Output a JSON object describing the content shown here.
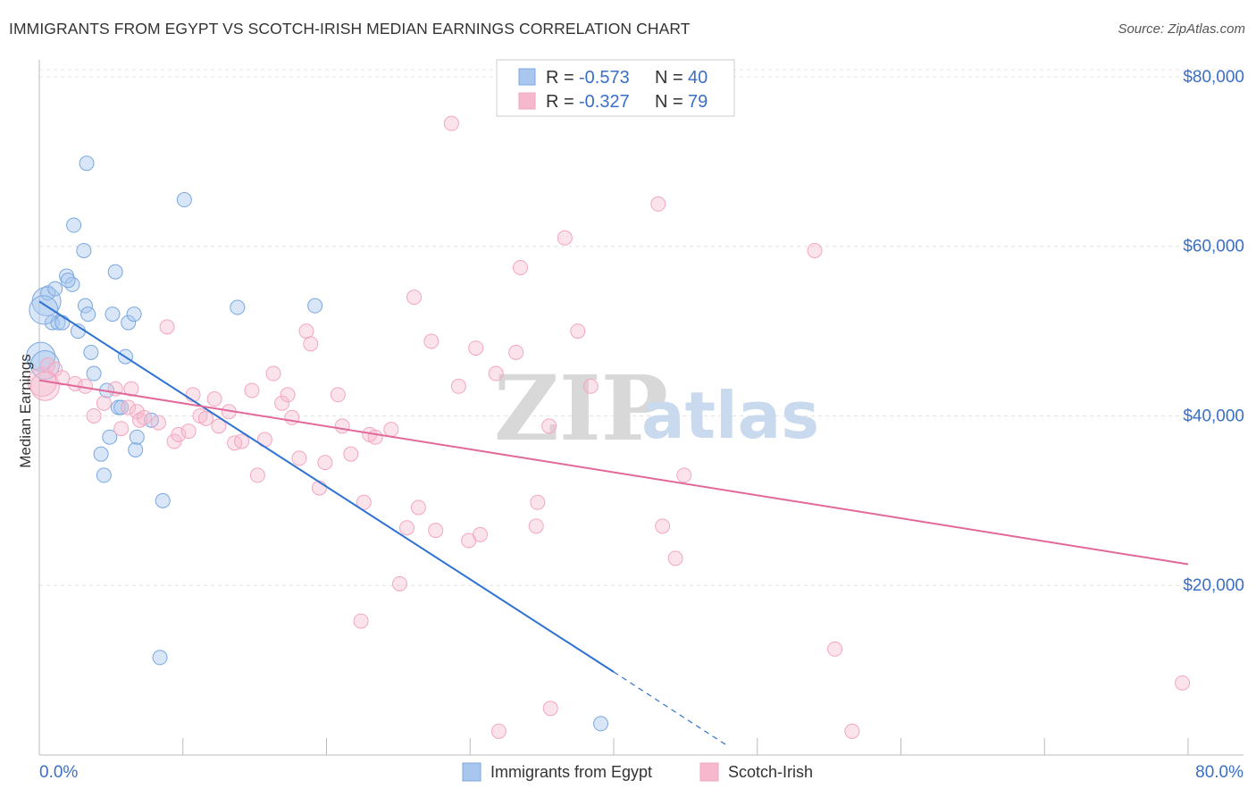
{
  "title": "IMMIGRANTS FROM EGYPT VS SCOTCH-IRISH MEDIAN EARNINGS CORRELATION CHART",
  "source": "Source: ZipAtlas.com",
  "watermark": {
    "zip": "ZIP",
    "atlas": "atlas"
  },
  "legend": {
    "rows": [
      {
        "r_label": "R =",
        "r_value": "-0.573",
        "n_label": "N =",
        "n_value": "40",
        "color": "#a9c7ee"
      },
      {
        "r_label": "R =",
        "r_value": "-0.327",
        "n_label": "N =",
        "n_value": "79",
        "color": "#f6b8cc"
      }
    ]
  },
  "chart_data": {
    "type": "scatter",
    "title": "IMMIGRANTS FROM EGYPT VS SCOTCH-IRISH MEDIAN EARNINGS CORRELATION CHART",
    "xlabel": "",
    "ylabel": "Median Earnings",
    "xlim": [
      0,
      80
    ],
    "ylim": [
      0,
      82000
    ],
    "x_tick_labels": [
      "0.0%",
      "80.0%"
    ],
    "y_ticks": [
      20000,
      40000,
      60000,
      80000
    ],
    "y_tick_labels": [
      "$20,000",
      "$40,000",
      "$60,000",
      "$80,000"
    ],
    "grid": true,
    "series": [
      {
        "name": "Immigrants from Egypt",
        "color": "#7aa7e0",
        "line_color": "#2d72d2",
        "points": [
          [
            0.1,
            47000
          ],
          [
            0.5,
            53500
          ],
          [
            0.6,
            54500
          ],
          [
            0.9,
            51000
          ],
          [
            1.1,
            55000
          ],
          [
            1.3,
            51000
          ],
          [
            1.9,
            56500
          ],
          [
            2.3,
            55500
          ],
          [
            2.4,
            62500
          ],
          [
            2.7,
            50000
          ],
          [
            3.1,
            59500
          ],
          [
            3.2,
            53000
          ],
          [
            3.3,
            69800
          ],
          [
            3.4,
            52000
          ],
          [
            3.6,
            47500
          ],
          [
            3.8,
            45000
          ],
          [
            4.3,
            35500
          ],
          [
            4.5,
            33000
          ],
          [
            4.7,
            43000
          ],
          [
            4.9,
            37500
          ],
          [
            5.1,
            52000
          ],
          [
            5.3,
            57000
          ],
          [
            5.5,
            41000
          ],
          [
            6.0,
            47000
          ],
          [
            6.2,
            51000
          ],
          [
            6.6,
            52000
          ],
          [
            6.7,
            36000
          ],
          [
            6.8,
            37500
          ],
          [
            7.8,
            39500
          ],
          [
            8.4,
            11500
          ],
          [
            8.6,
            30000
          ],
          [
            10.1,
            65500
          ],
          [
            13.8,
            52800
          ],
          [
            19.2,
            53000
          ],
          [
            39.1,
            3700
          ],
          [
            0.3,
            52500
          ],
          [
            1.6,
            51000
          ],
          [
            2.0,
            56000
          ],
          [
            5.7,
            41000
          ],
          [
            0.4,
            46000
          ]
        ],
        "trend": {
          "x_start": 0,
          "y_start": 53500,
          "x_solid_end": 40,
          "y_solid_end": 9800,
          "x_dash_end": 48,
          "y_dash_end": 1000
        }
      },
      {
        "name": "Scotch-Irish",
        "color": "#f3a6c0",
        "line_color": "#e2689a",
        "points": [
          [
            0.2,
            44000
          ],
          [
            0.6,
            46000
          ],
          [
            1.1,
            45500
          ],
          [
            1.6,
            44500
          ],
          [
            2.5,
            43800
          ],
          [
            3.2,
            43500
          ],
          [
            3.8,
            40000
          ],
          [
            4.5,
            41500
          ],
          [
            5.3,
            43200
          ],
          [
            5.7,
            38500
          ],
          [
            6.2,
            41000
          ],
          [
            6.4,
            43200
          ],
          [
            6.8,
            40500
          ],
          [
            7.0,
            39500
          ],
          [
            7.3,
            39800
          ],
          [
            8.3,
            39200
          ],
          [
            8.9,
            50500
          ],
          [
            9.4,
            37000
          ],
          [
            9.7,
            37800
          ],
          [
            10.4,
            38200
          ],
          [
            10.7,
            42500
          ],
          [
            11.2,
            40000
          ],
          [
            11.6,
            39700
          ],
          [
            12.2,
            42000
          ],
          [
            12.5,
            38800
          ],
          [
            13.2,
            40500
          ],
          [
            13.6,
            36800
          ],
          [
            14.1,
            37000
          ],
          [
            14.8,
            43000
          ],
          [
            15.2,
            33000
          ],
          [
            15.7,
            37200
          ],
          [
            16.3,
            45000
          ],
          [
            16.9,
            41500
          ],
          [
            17.3,
            42500
          ],
          [
            17.6,
            39800
          ],
          [
            18.1,
            35000
          ],
          [
            18.6,
            50000
          ],
          [
            18.9,
            48500
          ],
          [
            19.5,
            31500
          ],
          [
            19.9,
            34500
          ],
          [
            20.8,
            42500
          ],
          [
            21.1,
            38800
          ],
          [
            21.7,
            35500
          ],
          [
            22.4,
            15800
          ],
          [
            22.6,
            29800
          ],
          [
            23.0,
            37800
          ],
          [
            23.4,
            37500
          ],
          [
            24.5,
            38400
          ],
          [
            25.1,
            20200
          ],
          [
            25.6,
            26800
          ],
          [
            26.4,
            29200
          ],
          [
            26.1,
            54000
          ],
          [
            27.3,
            48800
          ],
          [
            27.6,
            26500
          ],
          [
            28.7,
            74500
          ],
          [
            29.2,
            43500
          ],
          [
            29.9,
            25300
          ],
          [
            30.4,
            48000
          ],
          [
            30.7,
            26000
          ],
          [
            31.8,
            45000
          ],
          [
            33.2,
            47500
          ],
          [
            33.5,
            57500
          ],
          [
            34.6,
            27000
          ],
          [
            34.7,
            29800
          ],
          [
            35.6,
            5500
          ],
          [
            35.5,
            38800
          ],
          [
            36.6,
            61000
          ],
          [
            37.5,
            50000
          ],
          [
            38.4,
            43500
          ],
          [
            43.1,
            65000
          ],
          [
            43.4,
            27000
          ],
          [
            44.3,
            23200
          ],
          [
            44.9,
            33000
          ],
          [
            54.0,
            59500
          ],
          [
            55.4,
            12500
          ],
          [
            56.6,
            2800
          ],
          [
            79.6,
            8500
          ],
          [
            32.0,
            2800
          ],
          [
            0.4,
            43500
          ]
        ],
        "trend": {
          "x_start": 0,
          "y_start": 44200,
          "x_end": 80,
          "y_end": 22500
        }
      }
    ]
  },
  "bottom_legend": [
    {
      "label": "Immigrants from Egypt",
      "color": "#a9c7ee"
    },
    {
      "label": "Scotch-Irish",
      "color": "#f6b8cc"
    }
  ]
}
